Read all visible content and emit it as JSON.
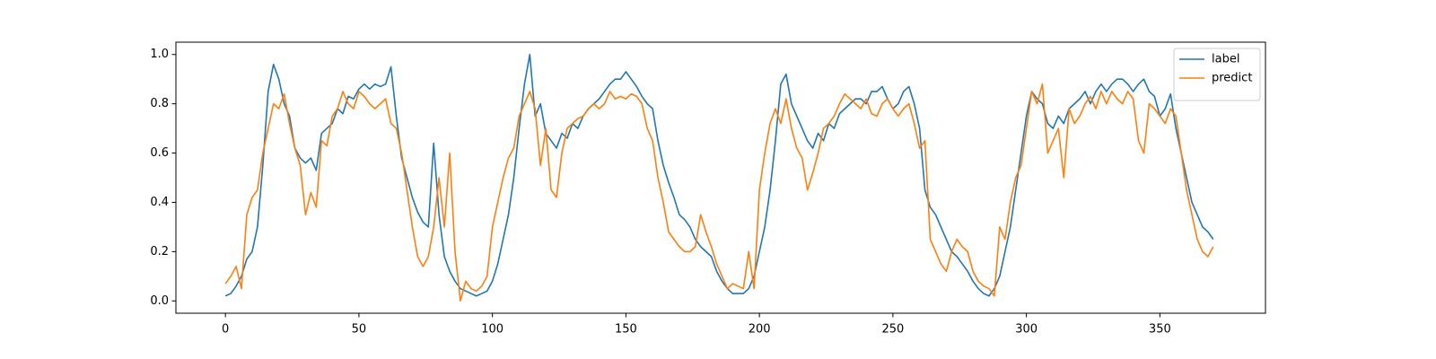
{
  "chart_data": {
    "type": "line",
    "x": [
      0,
      2,
      4,
      6,
      8,
      10,
      12,
      14,
      16,
      18,
      20,
      22,
      24,
      26,
      28,
      30,
      32,
      34,
      36,
      38,
      40,
      42,
      44,
      46,
      48,
      50,
      52,
      54,
      56,
      58,
      60,
      62,
      64,
      66,
      68,
      70,
      72,
      74,
      76,
      78,
      80,
      82,
      84,
      86,
      88,
      90,
      92,
      94,
      96,
      98,
      100,
      102,
      104,
      106,
      108,
      110,
      112,
      114,
      116,
      118,
      120,
      122,
      124,
      126,
      128,
      130,
      132,
      134,
      136,
      138,
      140,
      142,
      144,
      146,
      148,
      150,
      152,
      154,
      156,
      158,
      160,
      162,
      164,
      166,
      168,
      170,
      172,
      174,
      176,
      178,
      180,
      182,
      184,
      186,
      188,
      190,
      192,
      194,
      196,
      198,
      200,
      202,
      204,
      206,
      208,
      210,
      212,
      214,
      216,
      218,
      220,
      222,
      224,
      226,
      228,
      230,
      232,
      234,
      236,
      238,
      240,
      242,
      244,
      246,
      248,
      250,
      252,
      254,
      256,
      258,
      260,
      262,
      264,
      266,
      268,
      270,
      272,
      274,
      276,
      278,
      280,
      282,
      284,
      286,
      288,
      290,
      292,
      294,
      296,
      298,
      300,
      302,
      304,
      306,
      308,
      310,
      312,
      314,
      316,
      318,
      320,
      322,
      324,
      326,
      328,
      330,
      332,
      334,
      336,
      338,
      340,
      342,
      344,
      346,
      348,
      350,
      352,
      354,
      356,
      358,
      360,
      362,
      364,
      366,
      368,
      370
    ],
    "series": [
      {
        "name": "label",
        "color": "#1f77b4",
        "values": [
          0.02,
          0.03,
          0.06,
          0.1,
          0.17,
          0.2,
          0.3,
          0.55,
          0.85,
          0.96,
          0.9,
          0.8,
          0.75,
          0.62,
          0.58,
          0.56,
          0.58,
          0.53,
          0.68,
          0.7,
          0.72,
          0.78,
          0.76,
          0.83,
          0.82,
          0.86,
          0.88,
          0.86,
          0.88,
          0.87,
          0.88,
          0.95,
          0.75,
          0.58,
          0.5,
          0.42,
          0.36,
          0.32,
          0.3,
          0.64,
          0.35,
          0.18,
          0.12,
          0.08,
          0.05,
          0.04,
          0.03,
          0.02,
          0.03,
          0.04,
          0.08,
          0.15,
          0.25,
          0.35,
          0.5,
          0.7,
          0.88,
          1.0,
          0.75,
          0.8,
          0.68,
          0.65,
          0.62,
          0.68,
          0.66,
          0.72,
          0.7,
          0.75,
          0.78,
          0.8,
          0.82,
          0.85,
          0.88,
          0.9,
          0.9,
          0.93,
          0.9,
          0.87,
          0.83,
          0.8,
          0.78,
          0.65,
          0.55,
          0.48,
          0.42,
          0.35,
          0.33,
          0.3,
          0.25,
          0.22,
          0.2,
          0.18,
          0.12,
          0.08,
          0.05,
          0.03,
          0.03,
          0.03,
          0.05,
          0.1,
          0.2,
          0.3,
          0.45,
          0.65,
          0.88,
          0.92,
          0.8,
          0.75,
          0.7,
          0.65,
          0.62,
          0.68,
          0.65,
          0.72,
          0.7,
          0.76,
          0.78,
          0.8,
          0.82,
          0.82,
          0.8,
          0.85,
          0.85,
          0.87,
          0.82,
          0.78,
          0.8,
          0.85,
          0.87,
          0.8,
          0.7,
          0.45,
          0.38,
          0.35,
          0.3,
          0.25,
          0.2,
          0.18,
          0.15,
          0.12,
          0.08,
          0.05,
          0.03,
          0.02,
          0.05,
          0.1,
          0.2,
          0.3,
          0.45,
          0.6,
          0.75,
          0.85,
          0.82,
          0.8,
          0.72,
          0.7,
          0.75,
          0.72,
          0.78,
          0.8,
          0.82,
          0.85,
          0.8,
          0.85,
          0.88,
          0.85,
          0.88,
          0.9,
          0.9,
          0.88,
          0.85,
          0.88,
          0.9,
          0.85,
          0.83,
          0.75,
          0.78,
          0.84,
          0.7,
          0.6,
          0.5,
          0.4,
          0.35,
          0.3,
          0.28,
          0.25
        ]
      },
      {
        "name": "predict",
        "color": "#ff7f0e",
        "values": [
          0.07,
          0.1,
          0.14,
          0.05,
          0.35,
          0.42,
          0.45,
          0.6,
          0.7,
          0.8,
          0.78,
          0.84,
          0.72,
          0.62,
          0.55,
          0.35,
          0.44,
          0.38,
          0.65,
          0.63,
          0.75,
          0.78,
          0.85,
          0.8,
          0.78,
          0.85,
          0.83,
          0.8,
          0.78,
          0.8,
          0.82,
          0.72,
          0.7,
          0.6,
          0.45,
          0.3,
          0.18,
          0.14,
          0.18,
          0.3,
          0.5,
          0.3,
          0.6,
          0.2,
          0.0,
          0.08,
          0.05,
          0.04,
          0.06,
          0.1,
          0.3,
          0.4,
          0.5,
          0.58,
          0.62,
          0.75,
          0.8,
          0.85,
          0.78,
          0.55,
          0.7,
          0.45,
          0.42,
          0.6,
          0.7,
          0.72,
          0.74,
          0.75,
          0.78,
          0.8,
          0.78,
          0.8,
          0.85,
          0.82,
          0.83,
          0.82,
          0.84,
          0.83,
          0.8,
          0.7,
          0.65,
          0.5,
          0.4,
          0.28,
          0.25,
          0.22,
          0.2,
          0.2,
          0.22,
          0.35,
          0.28,
          0.22,
          0.15,
          0.1,
          0.05,
          0.07,
          0.06,
          0.05,
          0.2,
          0.05,
          0.45,
          0.6,
          0.72,
          0.78,
          0.72,
          0.82,
          0.7,
          0.62,
          0.58,
          0.45,
          0.52,
          0.6,
          0.7,
          0.72,
          0.75,
          0.8,
          0.84,
          0.82,
          0.8,
          0.78,
          0.82,
          0.76,
          0.75,
          0.8,
          0.82,
          0.78,
          0.75,
          0.78,
          0.8,
          0.72,
          0.62,
          0.65,
          0.25,
          0.2,
          0.15,
          0.12,
          0.2,
          0.25,
          0.22,
          0.2,
          0.12,
          0.08,
          0.06,
          0.05,
          0.02,
          0.3,
          0.25,
          0.4,
          0.5,
          0.55,
          0.7,
          0.85,
          0.8,
          0.88,
          0.6,
          0.65,
          0.7,
          0.5,
          0.78,
          0.72,
          0.75,
          0.8,
          0.83,
          0.78,
          0.85,
          0.8,
          0.85,
          0.82,
          0.8,
          0.85,
          0.82,
          0.65,
          0.6,
          0.8,
          0.78,
          0.75,
          0.72,
          0.78,
          0.75,
          0.6,
          0.45,
          0.35,
          0.25,
          0.2,
          0.18,
          0.22
        ]
      }
    ],
    "xlim": [
      -18.55,
      389.55
    ],
    "xticks": [
      0,
      50,
      100,
      150,
      200,
      250,
      300,
      350
    ],
    "ylim": [
      -0.05,
      1.05
    ],
    "yticks": [
      {
        "value": 0,
        "label": "0.0"
      },
      0.2,
      0.4,
      0.6,
      0.8,
      {
        "value": 1,
        "label": "1.0"
      }
    ],
    "legend": "upper right"
  }
}
